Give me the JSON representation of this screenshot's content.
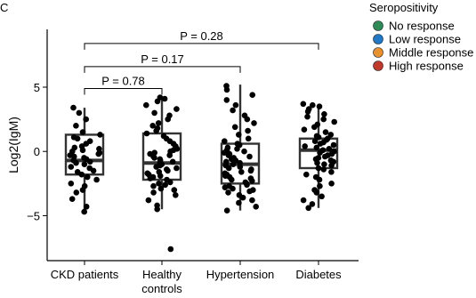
{
  "panel_label": "C",
  "chart_data": {
    "type": "boxplot",
    "ylabel": "Log2(IgM)",
    "ylim": [
      -8.5,
      9.5
    ],
    "yticks": [
      -5,
      0,
      5
    ],
    "ytick_labels": [
      "−5",
      "0",
      "5"
    ],
    "categories": [
      {
        "label_lines": [
          "CKD patients"
        ]
      },
      {
        "label_lines": [
          "Healthy",
          "controls"
        ]
      },
      {
        "label_lines": [
          "Hypertension"
        ]
      },
      {
        "label_lines": [
          "Diabetes"
        ]
      }
    ],
    "boxes": [
      {
        "q1": -1.8,
        "median": -0.7,
        "q3": 1.3,
        "whisker_low": -4.7,
        "whisker_high": 3.4
      },
      {
        "q1": -2.2,
        "median": -0.9,
        "q3": 1.4,
        "whisker_low": -4.5,
        "whisker_high": 4.2
      },
      {
        "q1": -2.5,
        "median": -1.0,
        "q3": 0.6,
        "whisker_low": -4.6,
        "whisker_high": 5.2
      },
      {
        "q1": -1.3,
        "median": 0.1,
        "q3": 1.0,
        "whisker_low": -4.4,
        "whisker_high": 3.7
      }
    ],
    "points": [
      [
        -4.7,
        -4.3,
        -3.7,
        -3.2,
        -3.0,
        -2.7,
        -2.5,
        -2.2,
        -2.0,
        -1.8,
        -1.6,
        -1.5,
        -1.3,
        -1.2,
        -1.0,
        -0.9,
        -0.8,
        -0.7,
        -0.6,
        -0.5,
        -0.4,
        -0.3,
        -0.2,
        -0.1,
        0.0,
        0.1,
        0.2,
        0.3,
        0.4,
        0.6,
        0.8,
        1.0,
        1.1,
        1.3,
        1.5,
        2.0,
        2.5,
        3.0,
        3.4
      ],
      [
        -7.6,
        -4.5,
        -4.2,
        -3.8,
        -3.4,
        -3.2,
        -3.0,
        -2.9,
        -2.7,
        -2.6,
        -2.5,
        -2.4,
        -2.2,
        -2.1,
        -2.0,
        -1.9,
        -1.8,
        -1.7,
        -1.6,
        -1.5,
        -1.4,
        -1.3,
        -1.2,
        -1.1,
        -1.0,
        -0.9,
        -0.8,
        -0.7,
        -0.6,
        -0.5,
        -0.4,
        -0.3,
        -0.2,
        -0.1,
        0.0,
        0.1,
        0.2,
        0.4,
        0.6,
        0.8,
        1.0,
        1.2,
        1.4,
        1.6,
        1.8,
        2.0,
        2.2,
        2.5,
        2.8,
        3.0,
        3.3,
        3.6,
        3.9,
        4.1,
        4.2
      ],
      [
        -4.6,
        -4.3,
        -4.0,
        -3.8,
        -3.6,
        -3.4,
        -3.2,
        -3.1,
        -3.0,
        -2.9,
        -2.8,
        -2.7,
        -2.6,
        -2.5,
        -2.4,
        -2.3,
        -2.2,
        -2.1,
        -2.0,
        -1.9,
        -1.8,
        -1.7,
        -1.6,
        -1.5,
        -1.4,
        -1.3,
        -1.2,
        -1.1,
        -1.0,
        -0.9,
        -0.8,
        -0.7,
        -0.6,
        -0.5,
        -0.4,
        -0.3,
        -0.2,
        -0.1,
        0.0,
        0.1,
        0.2,
        0.3,
        0.5,
        0.6,
        0.8,
        1.0,
        1.3,
        1.6,
        1.9,
        2.2,
        2.5,
        2.8,
        3.2,
        3.6,
        4.0,
        4.4,
        4.8,
        5.1
      ],
      [
        -4.4,
        -4.1,
        -3.8,
        -3.5,
        -3.2,
        -3.0,
        -2.7,
        -2.5,
        -2.2,
        -2.0,
        -1.8,
        -1.6,
        -1.4,
        -1.3,
        -1.1,
        -1.0,
        -0.9,
        -0.8,
        -0.7,
        -0.6,
        -0.5,
        -0.4,
        -0.3,
        -0.2,
        -0.1,
        0.0,
        0.1,
        0.2,
        0.3,
        0.4,
        0.5,
        0.6,
        0.7,
        0.8,
        0.9,
        1.0,
        1.1,
        1.2,
        1.3,
        1.5,
        1.7,
        1.9,
        2.1,
        2.3,
        2.5,
        2.7,
        2.9,
        3.1,
        3.3,
        3.5,
        3.6,
        3.7
      ]
    ],
    "comparisons": [
      {
        "from": 0,
        "to": 3,
        "label": "P = 0.28",
        "y": 8.4
      },
      {
        "from": 0,
        "to": 2,
        "label": "P = 0.17",
        "y": 6.6
      },
      {
        "from": 0,
        "to": 1,
        "label": "P = 0.78",
        "y": 4.9
      }
    ],
    "legend": {
      "title": "Seropositivity",
      "placement": "top-right",
      "items": [
        {
          "label": "No response",
          "color": "#2e8b57"
        },
        {
          "label": "Low response",
          "color": "#1f78c8"
        },
        {
          "label": "Middle response",
          "color": "#e8912d"
        },
        {
          "label": "High response",
          "color": "#c0392b"
        }
      ]
    },
    "point_color": "#000000",
    "box_color": "#333333"
  }
}
